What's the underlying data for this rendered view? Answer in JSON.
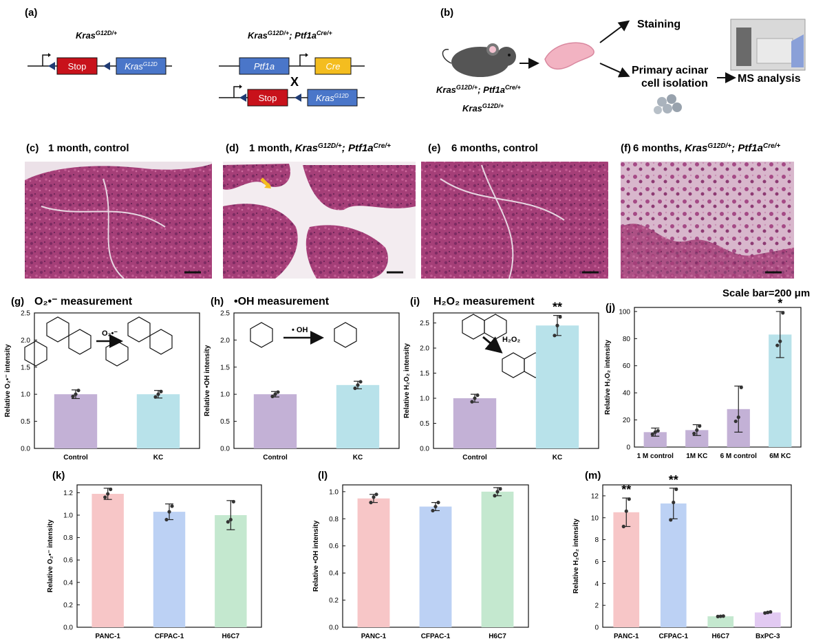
{
  "panels": {
    "a": {
      "label": "(a)",
      "geno1": "Kras",
      "geno1_sup": "G12D/+",
      "geno2_part1": "Kras",
      "geno2_sup1": "G12D/+",
      "geno2_mid": "; Ptf1a",
      "geno2_sup2": "Cre/+",
      "stop": "Stop",
      "kras": "Kras",
      "kras_sup": "G12D",
      "ptf1a": "Ptf1a",
      "cre": "Cre",
      "cross": "X"
    },
    "b": {
      "label": "(b)",
      "staining": "Staining",
      "primary_line1": "Primary acinar",
      "primary_line2": "cell isolation",
      "ms": "MS analysis",
      "geno_a": "Kras",
      "geno_a_sup": "G12D/+",
      "geno_a_mid": "; Ptf1a",
      "geno_a_sup2": "Cre/+",
      "geno_b": "Kras",
      "geno_b_sup": "G12D/+"
    },
    "c": {
      "label": "(c)",
      "title": "1 month, control"
    },
    "d": {
      "label": "(d)",
      "title_a": "1 month, ",
      "title_b": "Kras",
      "title_sup1": "G12D/+",
      "title_c": "; Ptf1a",
      "title_sup2": "Cre/+"
    },
    "e": {
      "label": "(e)",
      "title": "6 months, control"
    },
    "f": {
      "label": "(f)",
      "title_a": "6 months, ",
      "title_b": "Kras",
      "title_sup1": "G12D/+",
      "title_c": "; Ptf1a",
      "title_sup2": "Cre/+"
    },
    "scale": "Scale bar=200 μm",
    "g": {
      "label": "(g)",
      "title": "O₂•⁻ measurement",
      "reagent": "O₂•⁻"
    },
    "h": {
      "label": "(h)",
      "title": "•OH measurement",
      "reagent": "• OH"
    },
    "i": {
      "label": "(i)",
      "title": "H₂O₂ measurement",
      "reagent": "H₂O₂"
    },
    "j": {
      "label": "(j)"
    },
    "k": {
      "label": "(k)"
    },
    "l": {
      "label": "(l)"
    },
    "m": {
      "label": "(m)"
    }
  },
  "colors": {
    "purple": "#c3b1d6",
    "cyan": "#b8e2ea",
    "pink": "#f7c6c7",
    "blue": "#bcd1f4",
    "green": "#c4e8cf",
    "lavender": "#e2caf2",
    "stop_red": "#c8121b",
    "kras_blue": "#4a76c9",
    "cre_yellow": "#f4bd1f",
    "he_tissue": "#b0457c",
    "he_bg": "#ece1e8"
  },
  "chart_data": [
    {
      "id": "g",
      "type": "bar",
      "categories": [
        "Control",
        "KC"
      ],
      "values": [
        1.0,
        1.0
      ],
      "errors": [
        0.08,
        0.07
      ],
      "points": [
        [
          0.96,
          1.0,
          1.07
        ],
        [
          0.95,
          1.0,
          1.05
        ]
      ],
      "ylabel": "Relative O₂•⁻ intensity",
      "ylim": [
        0,
        2.5
      ],
      "yticks": [
        "0.0",
        "0.5",
        "1.0",
        "1.5",
        "2.0",
        "2.5"
      ],
      "colors": [
        "#c3b1d6",
        "#b8e2ea"
      ],
      "sig": [
        "",
        ""
      ]
    },
    {
      "id": "h",
      "type": "bar",
      "categories": [
        "Control",
        "KC"
      ],
      "values": [
        1.0,
        1.17
      ],
      "errors": [
        0.05,
        0.07
      ],
      "points": [
        [
          0.96,
          1.0,
          1.04
        ],
        [
          1.11,
          1.17,
          1.23
        ]
      ],
      "ylabel": "Relative •OH intensity",
      "ylim": [
        0,
        2.5
      ],
      "yticks": [
        "0.0",
        "0.5",
        "1.0",
        "1.5",
        "2.0",
        "2.5"
      ],
      "colors": [
        "#c3b1d6",
        "#b8e2ea"
      ],
      "sig": [
        "",
        ""
      ]
    },
    {
      "id": "i",
      "type": "bar",
      "categories": [
        "Control",
        "KC"
      ],
      "values": [
        1.0,
        2.45
      ],
      "errors": [
        0.08,
        0.2
      ],
      "points": [
        [
          0.93,
          1.0,
          1.06
        ],
        [
          2.25,
          2.45,
          2.62
        ]
      ],
      "ylabel": "Relative H₂O₂ intensity",
      "ylim": [
        0,
        2.7
      ],
      "yticks": [
        "0.0",
        "0.5",
        "1.0",
        "1.5",
        "2.0",
        "2.5"
      ],
      "colors": [
        "#c3b1d6",
        "#b8e2ea"
      ],
      "sig": [
        "",
        "**"
      ]
    },
    {
      "id": "j",
      "type": "bar",
      "categories": [
        "1 M control",
        "1M KC",
        "6 M control",
        "6M KC"
      ],
      "values": [
        11,
        12.5,
        28,
        83
      ],
      "errors": [
        3,
        4,
        17,
        17
      ],
      "points": [
        [
          9.5,
          11,
          12
        ],
        [
          10,
          12.5,
          15.5
        ],
        [
          19,
          22,
          44
        ],
        [
          75,
          78,
          99
        ]
      ],
      "ylabel": "Relative H₂O₂ intensity",
      "ylim": [
        0,
        103
      ],
      "yticks": [
        "0",
        "20",
        "40",
        "60",
        "80",
        "100"
      ],
      "colors": [
        "#c3b1d6",
        "#c3b1d6",
        "#c3b1d6",
        "#b8e2ea"
      ],
      "sig": [
        "",
        "",
        "",
        "*"
      ]
    },
    {
      "id": "k",
      "type": "bar",
      "categories": [
        "PANC-1",
        "CFPAC-1",
        "H6C7"
      ],
      "values": [
        1.19,
        1.03,
        1.0
      ],
      "errors": [
        0.05,
        0.07,
        0.13
      ],
      "points": [
        [
          1.16,
          1.19,
          1.23
        ],
        [
          0.96,
          1.03,
          1.08
        ],
        [
          0.94,
          0.96,
          1.12
        ]
      ],
      "ylabel": "Relative O₂•⁻ intensity",
      "ylim": [
        0,
        1.27
      ],
      "yticks": [
        "0.0",
        "0.2",
        "0.4",
        "0.6",
        "0.8",
        "1.0",
        "1.2"
      ],
      "colors": [
        "#f7c6c7",
        "#bcd1f4",
        "#c4e8cf"
      ],
      "sig": [
        "",
        "",
        ""
      ]
    },
    {
      "id": "l",
      "type": "bar",
      "categories": [
        "PANC-1",
        "CFPAC-1",
        "H6C7"
      ],
      "values": [
        0.95,
        0.89,
        1.0
      ],
      "errors": [
        0.03,
        0.03,
        0.03
      ],
      "points": [
        [
          0.92,
          0.96,
          0.98
        ],
        [
          0.86,
          0.89,
          0.92
        ],
        [
          0.97,
          1.0,
          1.02
        ]
      ],
      "ylabel": "Relative •OH intensity",
      "ylim": [
        0,
        1.05
      ],
      "yticks": [
        "0.0",
        "0.2",
        "0.4",
        "0.6",
        "0.8",
        "1.0"
      ],
      "colors": [
        "#f7c6c7",
        "#bcd1f4",
        "#c4e8cf"
      ],
      "sig": [
        "",
        "",
        ""
      ]
    },
    {
      "id": "m",
      "type": "bar",
      "categories": [
        "PANC-1",
        "CFPAC-1",
        "H6C7",
        "BxPC-3"
      ],
      "values": [
        10.5,
        11.3,
        1.0,
        1.35
      ],
      "errors": [
        1.3,
        1.4,
        0.05,
        0.05
      ],
      "points": [
        [
          9.2,
          10.6,
          11.7
        ],
        [
          9.8,
          11.4,
          12.6
        ],
        [
          0.98,
          1.0,
          1.02
        ],
        [
          1.3,
          1.35,
          1.4
        ]
      ],
      "ylabel": "Relative H₂O₂ intensity",
      "ylim": [
        0,
        13
      ],
      "yticks": [
        "0",
        "2",
        "4",
        "6",
        "8",
        "10",
        "12"
      ],
      "colors": [
        "#f7c6c7",
        "#bcd1f4",
        "#c4e8cf",
        "#e2caf2"
      ],
      "sig": [
        "**",
        "**",
        "",
        ""
      ]
    }
  ]
}
